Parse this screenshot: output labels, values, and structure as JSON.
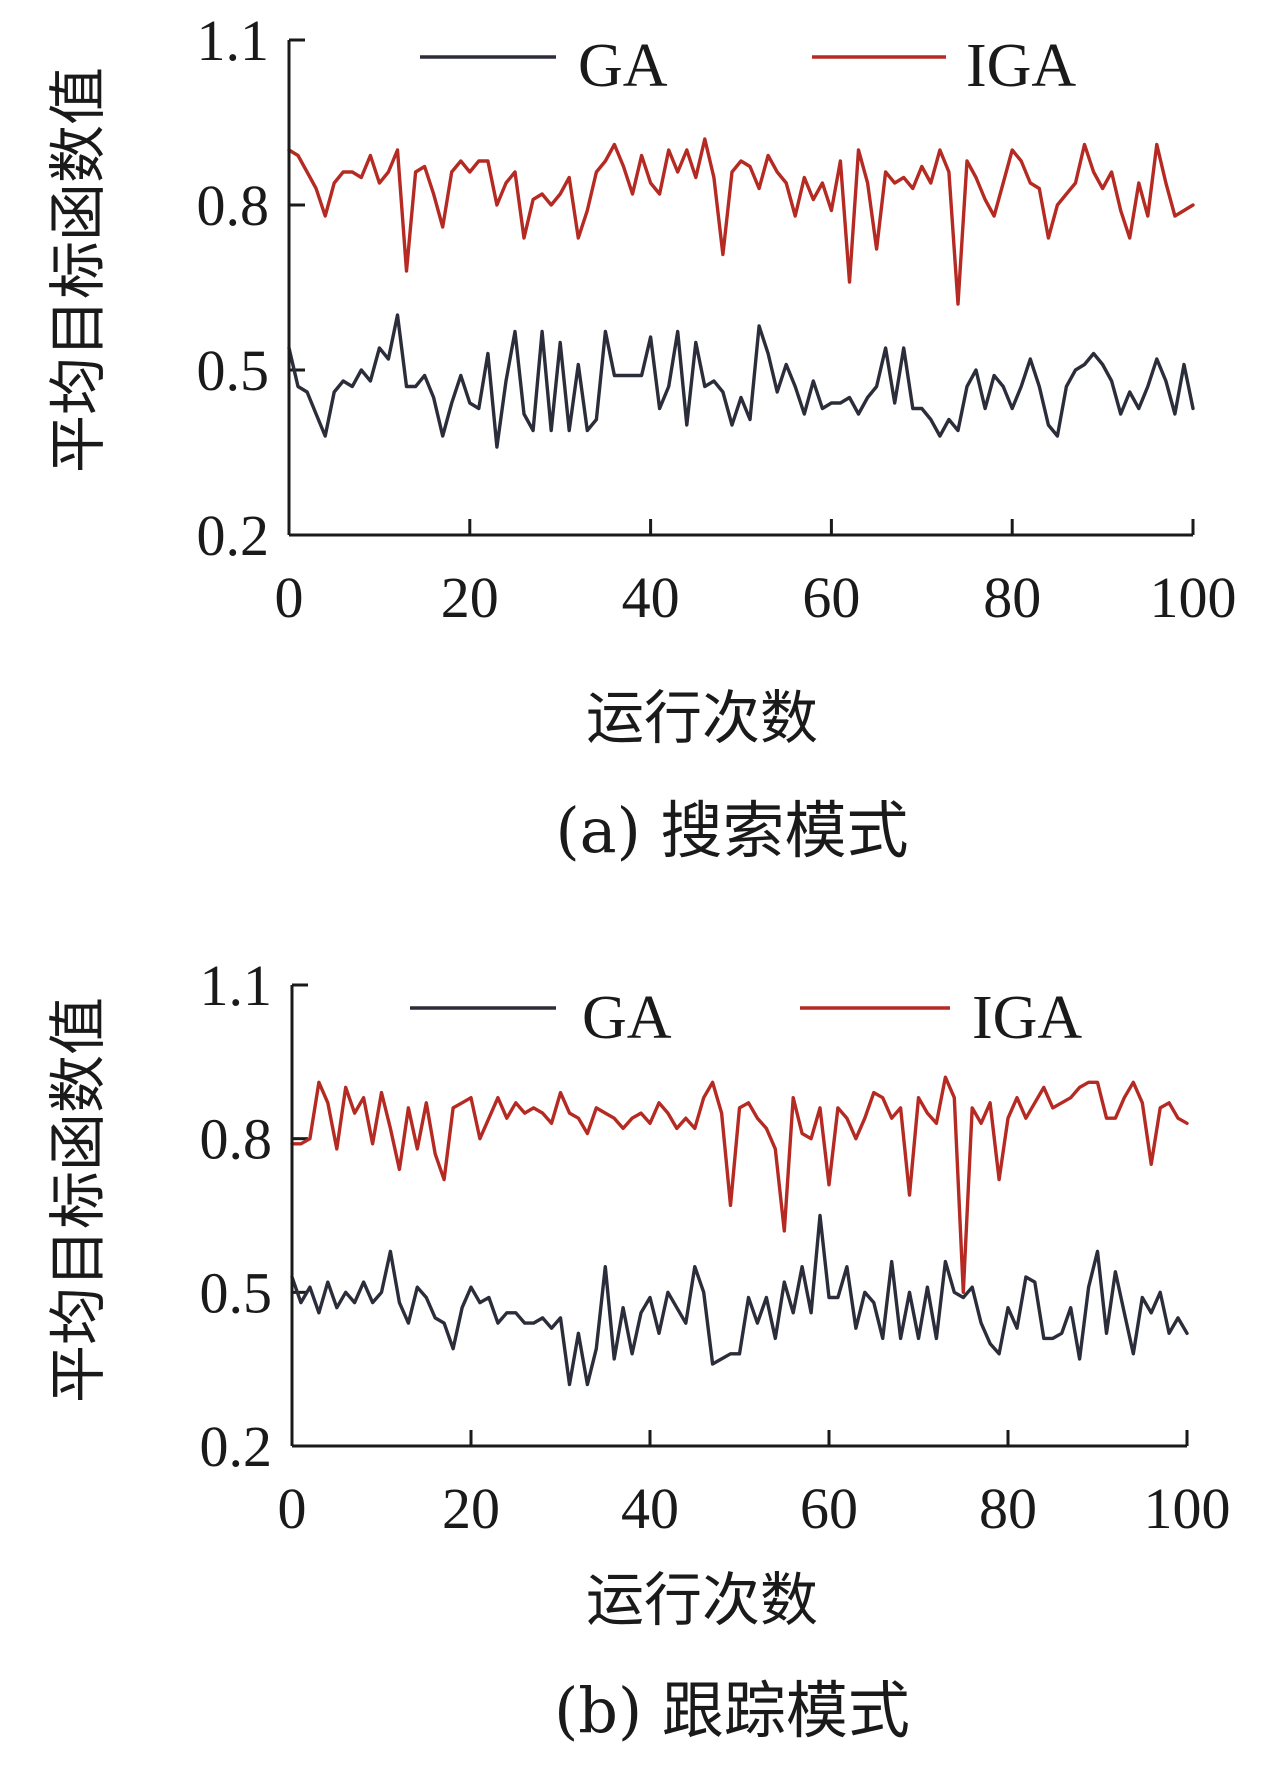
{
  "colors": {
    "GA": "#2b2d3a",
    "IGA": "#b52a22"
  },
  "chart_data": [
    {
      "type": "line",
      "caption": "(a) 搜索模式",
      "xlabel": "运行次数",
      "ylabel": "平均目标函数值",
      "xlim": [
        0,
        100
      ],
      "ylim": [
        0.2,
        1.1
      ],
      "xticks": [
        "0",
        "20",
        "40",
        "60",
        "80",
        "100"
      ],
      "yticks": [
        "0.2",
        "0.5",
        "0.8",
        "1.1"
      ],
      "legend": "top",
      "grid": false,
      "series": [
        {
          "name": "GA",
          "color": "#2b2d3a",
          "values": [
            0.54,
            0.47,
            0.46,
            0.42,
            0.38,
            0.46,
            0.48,
            0.47,
            0.5,
            0.48,
            0.54,
            0.52,
            0.6,
            0.47,
            0.47,
            0.49,
            0.45,
            0.38,
            0.44,
            0.49,
            0.44,
            0.43,
            0.53,
            0.36,
            0.48,
            0.57,
            0.42,
            0.39,
            0.57,
            0.39,
            0.55,
            0.39,
            0.51,
            0.39,
            0.41,
            0.57,
            0.49,
            0.49,
            0.49,
            0.49,
            0.56,
            0.43,
            0.47,
            0.57,
            0.4,
            0.55,
            0.47,
            0.48,
            0.46,
            0.4,
            0.45,
            0.41,
            0.58,
            0.53,
            0.46,
            0.51,
            0.47,
            0.42,
            0.48,
            0.43,
            0.44,
            0.44,
            0.45,
            0.42,
            0.45,
            0.47,
            0.54,
            0.44,
            0.54,
            0.43,
            0.43,
            0.41,
            0.38,
            0.41,
            0.39,
            0.47,
            0.5,
            0.43,
            0.49,
            0.47,
            0.43,
            0.47,
            0.52,
            0.47,
            0.4,
            0.38,
            0.47,
            0.5,
            0.51,
            0.53,
            0.51,
            0.48,
            0.42,
            0.46,
            0.43,
            0.47,
            0.52,
            0.48,
            0.42,
            0.51,
            0.43
          ]
        },
        {
          "name": "IGA",
          "color": "#b52a22",
          "values": [
            0.9,
            0.89,
            0.86,
            0.83,
            0.78,
            0.84,
            0.86,
            0.86,
            0.85,
            0.89,
            0.84,
            0.86,
            0.9,
            0.68,
            0.86,
            0.87,
            0.82,
            0.76,
            0.86,
            0.88,
            0.86,
            0.88,
            0.88,
            0.8,
            0.84,
            0.86,
            0.74,
            0.81,
            0.82,
            0.8,
            0.82,
            0.85,
            0.74,
            0.79,
            0.86,
            0.88,
            0.91,
            0.87,
            0.82,
            0.89,
            0.84,
            0.82,
            0.9,
            0.86,
            0.9,
            0.85,
            0.92,
            0.85,
            0.71,
            0.86,
            0.88,
            0.87,
            0.83,
            0.89,
            0.86,
            0.84,
            0.78,
            0.85,
            0.81,
            0.84,
            0.79,
            0.88,
            0.66,
            0.9,
            0.84,
            0.72,
            0.86,
            0.84,
            0.85,
            0.83,
            0.87,
            0.84,
            0.9,
            0.86,
            0.62,
            0.88,
            0.85,
            0.81,
            0.78,
            0.84,
            0.9,
            0.88,
            0.84,
            0.83,
            0.74,
            0.8,
            0.82,
            0.84,
            0.91,
            0.86,
            0.83,
            0.86,
            0.79,
            0.74,
            0.84,
            0.78,
            0.91,
            0.84,
            0.78,
            0.79,
            0.8
          ]
        }
      ]
    },
    {
      "type": "line",
      "caption": "(b) 跟踪模式",
      "xlabel": "运行次数",
      "ylabel": "平均目标函数值",
      "xlim": [
        0,
        100
      ],
      "ylim": [
        0.2,
        1.1
      ],
      "xticks": [
        "0",
        "20",
        "40",
        "60",
        "80",
        "100"
      ],
      "yticks": [
        "0.2",
        "0.5",
        "0.8",
        "1.1"
      ],
      "legend": "top",
      "grid": false,
      "series": [
        {
          "name": "GA",
          "color": "#2b2d3a",
          "values": [
            0.53,
            0.48,
            0.51,
            0.46,
            0.52,
            0.47,
            0.5,
            0.48,
            0.52,
            0.48,
            0.5,
            0.58,
            0.48,
            0.44,
            0.51,
            0.49,
            0.45,
            0.44,
            0.39,
            0.47,
            0.51,
            0.48,
            0.49,
            0.44,
            0.46,
            0.46,
            0.44,
            0.44,
            0.45,
            0.43,
            0.45,
            0.32,
            0.42,
            0.32,
            0.39,
            0.55,
            0.37,
            0.47,
            0.38,
            0.46,
            0.49,
            0.42,
            0.5,
            0.47,
            0.44,
            0.55,
            0.5,
            0.36,
            0.37,
            0.38,
            0.38,
            0.49,
            0.44,
            0.49,
            0.41,
            0.52,
            0.46,
            0.55,
            0.46,
            0.65,
            0.49,
            0.49,
            0.55,
            0.43,
            0.5,
            0.48,
            0.41,
            0.56,
            0.41,
            0.5,
            0.41,
            0.51,
            0.41,
            0.56,
            0.5,
            0.49,
            0.51,
            0.44,
            0.4,
            0.38,
            0.47,
            0.43,
            0.53,
            0.52,
            0.41,
            0.41,
            0.42,
            0.47,
            0.37,
            0.51,
            0.58,
            0.42,
            0.54,
            0.46,
            0.38,
            0.49,
            0.46,
            0.5,
            0.42,
            0.45,
            0.42
          ]
        },
        {
          "name": "IGA",
          "color": "#b52a22",
          "values": [
            0.79,
            0.79,
            0.8,
            0.91,
            0.87,
            0.78,
            0.9,
            0.85,
            0.88,
            0.79,
            0.89,
            0.82,
            0.74,
            0.86,
            0.78,
            0.87,
            0.77,
            0.72,
            0.86,
            0.87,
            0.88,
            0.8,
            0.84,
            0.88,
            0.84,
            0.87,
            0.85,
            0.86,
            0.85,
            0.83,
            0.89,
            0.85,
            0.84,
            0.81,
            0.86,
            0.85,
            0.84,
            0.82,
            0.84,
            0.85,
            0.83,
            0.87,
            0.85,
            0.82,
            0.84,
            0.82,
            0.88,
            0.91,
            0.85,
            0.67,
            0.86,
            0.87,
            0.84,
            0.82,
            0.78,
            0.62,
            0.88,
            0.81,
            0.8,
            0.86,
            0.71,
            0.86,
            0.84,
            0.8,
            0.84,
            0.89,
            0.88,
            0.84,
            0.86,
            0.69,
            0.88,
            0.85,
            0.83,
            0.92,
            0.88,
            0.5,
            0.86,
            0.83,
            0.87,
            0.72,
            0.84,
            0.88,
            0.84,
            0.87,
            0.9,
            0.86,
            0.87,
            0.88,
            0.9,
            0.91,
            0.91,
            0.84,
            0.84,
            0.88,
            0.91,
            0.87,
            0.75,
            0.86,
            0.87,
            0.84,
            0.83
          ]
        }
      ]
    }
  ]
}
